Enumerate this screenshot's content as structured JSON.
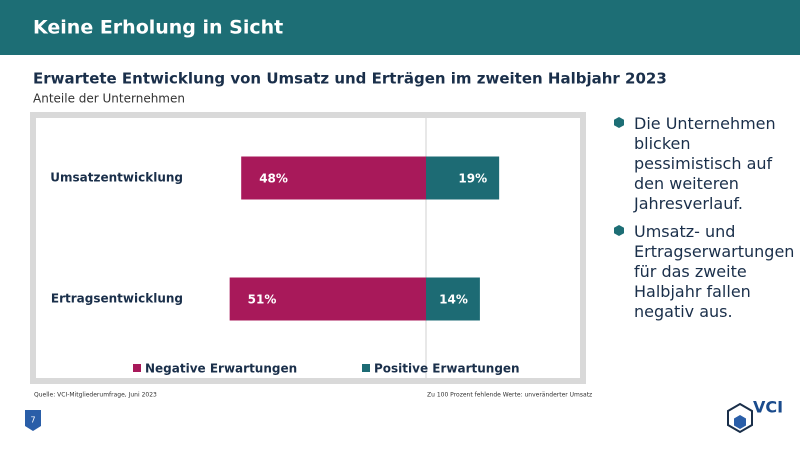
{
  "header": {
    "title": "Keine Erholung in Sicht"
  },
  "chart_data": {
    "type": "bar",
    "title": "Erwartete Entwicklung von Umsatz und Erträgen im zweiten Halbjahr 2023",
    "subtitle": "Anteile der Unternehmen",
    "categories": [
      "Umsatzentwicklung",
      "Ertragsentwicklung"
    ],
    "series": [
      {
        "name": "Negative Erwartungen",
        "color": "#a8195a",
        "values": [
          -48,
          -51
        ],
        "value_labels": [
          "48%",
          "51%"
        ]
      },
      {
        "name": "Positive Erwartungen",
        "color": "#1d6b74",
        "values": [
          19,
          14
        ],
        "value_labels": [
          "19%",
          "14%"
        ]
      }
    ],
    "source": "Quelle: VCI-Mitgliederumfrage, Juni 2023",
    "note": "Zu 100 Prozent fehlende Werte: unveränderter Umsatz"
  },
  "bullets": [
    "Die Unternehmen blicken pessimistisch auf den weiteren Jahresverlauf.",
    "Umsatz- und Ertragserwartungen für das zweite Halbjahr fallen negativ aus."
  ],
  "page_number": "7",
  "logo": "VCI"
}
